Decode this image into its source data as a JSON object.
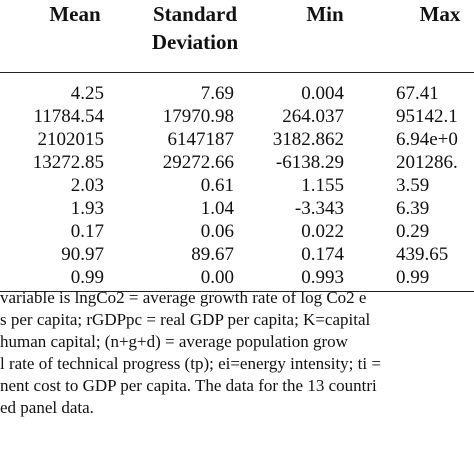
{
  "table": {
    "headers": {
      "mean": "Mean",
      "sd_line1": "Standard",
      "sd_line2": "Deviation",
      "min": "Min",
      "max": "Max"
    },
    "rows": [
      {
        "mean": "4.25",
        "sd": "7.69",
        "min": "0.004",
        "max": "67.41"
      },
      {
        "mean": "11784.54",
        "sd": "17970.98",
        "min": "264.037",
        "max": "95142.1"
      },
      {
        "mean": "2102015",
        "sd": "6147187",
        "min": "3182.862",
        "max": "6.94e+0"
      },
      {
        "mean": "13272.85",
        "sd": "29272.66",
        "min": "-6138.29",
        "max": "201286."
      },
      {
        "mean": "2.03",
        "sd": "0.61",
        "min": "1.155",
        "max": "3.59"
      },
      {
        "mean": "1.93",
        "sd": "1.04",
        "min": "-3.343",
        "max": "6.39"
      },
      {
        "mean": "0.17",
        "sd": "0.06",
        "min": "0.022",
        "max": "0.29"
      },
      {
        "mean": "90.97",
        "sd": "89.67",
        "min": "0.174",
        "max": "439.65"
      },
      {
        "mean": "0.99",
        "sd": "0.00",
        "min": "0.993",
        "max": "0.99"
      }
    ]
  },
  "notes": [
    "variable is lngCo2 = average growth rate of log Co2 e",
    "s per capita; rGDPpc = real GDP per capita; K=capital",
    "human capital; (n+g+d) = average population grow",
    "l rate of technical progress (tp); ei=energy intensity; ti =",
    "nent cost to GDP per capita. The data for the 13 countri",
    "ed panel data."
  ]
}
